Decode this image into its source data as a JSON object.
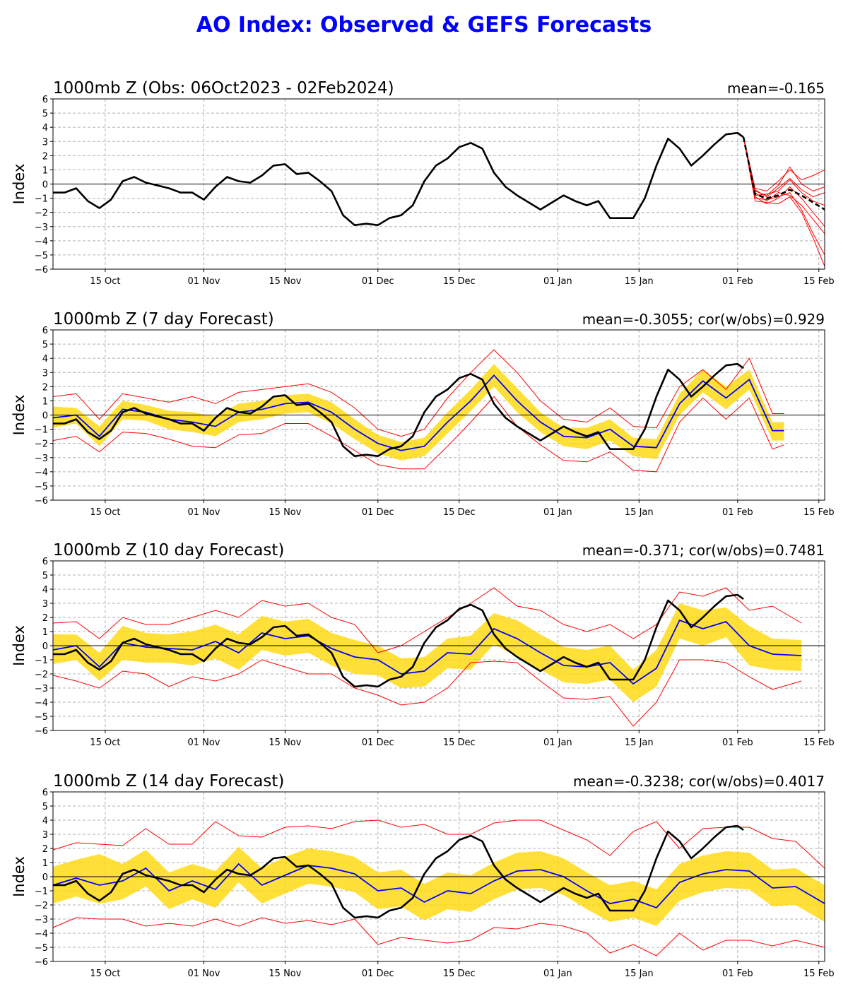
{
  "page": {
    "title": "AO Index: Observed & GEFS Forecasts"
  },
  "colors": {
    "title": "#0000ff",
    "obs": "#000000",
    "mean": "#0000ff",
    "spread": "#ffd700",
    "extremes": "#ff0000",
    "members": "#ff0000",
    "grid": "#b0b0b0"
  },
  "chart_data": [
    {
      "type": "line",
      "title": "1000mb Z (Obs: 06Oct2023 - 02Feb2024)",
      "stat": "mean=-0.165",
      "ylabel": "Index",
      "ylim": [
        -6,
        6
      ],
      "yticks": [
        -6,
        -5,
        -4,
        -3,
        -2,
        -1,
        0,
        1,
        2,
        3,
        4,
        5,
        6
      ],
      "xlim": [
        "2023-10-06",
        "2024-02-16"
      ],
      "xticks": [
        {
          "date": "2023-10-15",
          "label": "15 Oct"
        },
        {
          "date": "2023-11-01",
          "label": "01 Nov"
        },
        {
          "date": "2023-11-15",
          "label": "15 Nov"
        },
        {
          "date": "2023-12-01",
          "label": "01 Dec"
        },
        {
          "date": "2023-12-15",
          "label": "15 Dec"
        },
        {
          "date": "2024-01-01",
          "label": "01 Jan"
        },
        {
          "date": "2024-01-15",
          "label": "15 Jan"
        },
        {
          "date": "2024-02-01",
          "label": "01 Feb"
        },
        {
          "date": "2024-02-15",
          "label": "15 Feb"
        }
      ],
      "grid": true,
      "observed_key": "observed_ao",
      "ensemble": {
        "description": "GEFS member forecasts from 02Feb2024",
        "x": [
          "2024-02-02",
          "2024-02-04",
          "2024-02-06",
          "2024-02-08",
          "2024-02-10",
          "2024-02-12",
          "2024-02-14",
          "2024-02-16"
        ],
        "mean": [
          3.3,
          -0.7,
          -1.0,
          -0.8,
          -0.4,
          -0.8,
          -1.3,
          -1.8
        ],
        "members": [
          [
            3.3,
            -0.3,
            -0.5,
            0.2,
            1.0,
            0.3,
            0.6,
            1.0
          ],
          [
            3.3,
            -0.5,
            -0.8,
            -0.1,
            1.2,
            0.0,
            -0.5,
            -0.2
          ],
          [
            3.3,
            -0.9,
            -1.4,
            -1.0,
            -0.2,
            -1.0,
            -2.0,
            -3.0
          ],
          [
            3.3,
            -0.6,
            -1.2,
            -0.6,
            -0.8,
            -1.5,
            -2.5,
            -3.5
          ],
          [
            3.3,
            -1.0,
            -1.1,
            -0.9,
            -0.6,
            -1.8,
            -3.5,
            -5.0
          ],
          [
            3.3,
            -0.8,
            -0.7,
            -0.5,
            0.3,
            -0.6,
            -1.2,
            -1.5
          ],
          [
            3.3,
            -1.2,
            -1.3,
            -1.4,
            -0.9,
            -2.0,
            -3.8,
            -5.8
          ],
          [
            3.3,
            -0.4,
            -0.9,
            -0.3,
            0.4,
            -0.4,
            -0.9,
            -0.6
          ]
        ]
      }
    },
    {
      "type": "line",
      "title": "1000mb Z (7 day Forecast)",
      "stat": "mean=-0.3055; cor(w/obs)=0.929",
      "ylabel": "Index",
      "ylim": [
        -6,
        6
      ],
      "yticks": [
        -6,
        -5,
        -4,
        -3,
        -2,
        -1,
        0,
        1,
        2,
        3,
        4,
        5,
        6
      ],
      "xlim": [
        "2023-10-06",
        "2024-02-16"
      ],
      "grid": true,
      "observed_key": "observed_ao",
      "forecast": {
        "x": [
          "2023-10-06",
          "2023-10-10",
          "2023-10-14",
          "2023-10-18",
          "2023-10-22",
          "2023-10-26",
          "2023-10-30",
          "2023-11-03",
          "2023-11-07",
          "2023-11-11",
          "2023-11-15",
          "2023-11-19",
          "2023-11-23",
          "2023-11-27",
          "2023-12-01",
          "2023-12-05",
          "2023-12-09",
          "2023-12-13",
          "2023-12-17",
          "2023-12-21",
          "2023-12-25",
          "2023-12-29",
          "2024-01-02",
          "2024-01-06",
          "2024-01-10",
          "2024-01-14",
          "2024-01-18",
          "2024-01-22",
          "2024-01-26",
          "2024-01-30",
          "2024-02-03",
          "2024-02-07",
          "2024-02-09"
        ],
        "mean": [
          -0.2,
          0.0,
          -1.5,
          0.4,
          0.2,
          -0.3,
          -0.5,
          -0.8,
          0.2,
          0.4,
          0.8,
          0.9,
          0.2,
          -1.0,
          -2.0,
          -2.5,
          -2.2,
          -0.5,
          1.0,
          2.8,
          1.0,
          -0.5,
          -1.5,
          -1.6,
          -1.0,
          -2.2,
          -2.3,
          0.8,
          2.4,
          1.2,
          2.5,
          -1.1,
          -1.1
        ],
        "band_upper": [
          0.6,
          0.5,
          -0.8,
          1.0,
          0.7,
          0.3,
          0.2,
          -0.1,
          0.8,
          1.0,
          1.4,
          1.5,
          0.9,
          -0.3,
          -1.4,
          -1.9,
          -1.6,
          0.2,
          1.8,
          3.6,
          1.9,
          0.2,
          -0.9,
          -0.9,
          -0.3,
          -1.6,
          -1.7,
          1.5,
          3.2,
          2.0,
          3.2,
          -0.5,
          -0.5
        ],
        "band_lower": [
          -0.9,
          -0.6,
          -2.2,
          -0.3,
          -0.4,
          -1.0,
          -1.2,
          -1.5,
          -0.5,
          -0.3,
          0.1,
          0.2,
          -0.6,
          -1.7,
          -2.7,
          -3.2,
          -2.9,
          -1.3,
          0.3,
          2.0,
          0.2,
          -1.2,
          -2.2,
          -2.4,
          -1.8,
          -2.9,
          -3.1,
          0.0,
          1.6,
          0.4,
          1.8,
          -1.8,
          -1.8
        ],
        "max": [
          1.3,
          1.5,
          -0.3,
          1.5,
          1.2,
          0.9,
          1.3,
          0.8,
          1.6,
          1.8,
          2.0,
          2.2,
          1.6,
          0.5,
          -1.0,
          -1.5,
          -1.0,
          1.2,
          3.0,
          4.6,
          3.0,
          1.0,
          -0.3,
          -0.5,
          0.5,
          -0.8,
          -0.9,
          2.0,
          3.2,
          1.8,
          4.0,
          0.1,
          0.1
        ],
        "min": [
          -1.8,
          -1.5,
          -2.6,
          -1.2,
          -1.3,
          -1.7,
          -2.2,
          -2.3,
          -1.4,
          -1.3,
          -0.6,
          -0.6,
          -1.5,
          -2.5,
          -3.5,
          -3.8,
          -3.8,
          -2.2,
          -0.5,
          1.3,
          -0.8,
          -2.1,
          -3.2,
          -3.3,
          -2.6,
          -3.9,
          -4.0,
          -0.5,
          1.2,
          -0.3,
          1.2,
          -2.4,
          -2.1
        ]
      }
    },
    {
      "type": "line",
      "title": "1000mb Z (10 day Forecast)",
      "stat": "mean=-0.371; cor(w/obs)=0.7481",
      "ylabel": "Index",
      "ylim": [
        -6,
        6
      ],
      "yticks": [
        -6,
        -5,
        -4,
        -3,
        -2,
        -1,
        0,
        1,
        2,
        3,
        4,
        5,
        6
      ],
      "xlim": [
        "2023-10-06",
        "2024-02-16"
      ],
      "grid": true,
      "observed_key": "observed_ao",
      "forecast": {
        "x": [
          "2023-10-06",
          "2023-10-10",
          "2023-10-14",
          "2023-10-18",
          "2023-10-22",
          "2023-10-26",
          "2023-10-30",
          "2023-11-03",
          "2023-11-07",
          "2023-11-11",
          "2023-11-15",
          "2023-11-19",
          "2023-11-23",
          "2023-11-27",
          "2023-12-01",
          "2023-12-05",
          "2023-12-09",
          "2023-12-13",
          "2023-12-17",
          "2023-12-21",
          "2023-12-25",
          "2023-12-29",
          "2024-01-02",
          "2024-01-06",
          "2024-01-10",
          "2024-01-14",
          "2024-01-18",
          "2024-01-22",
          "2024-01-26",
          "2024-01-30",
          "2024-02-03",
          "2024-02-07",
          "2024-02-12"
        ],
        "mean": [
          -0.3,
          0.0,
          -1.5,
          0.2,
          -0.1,
          -0.2,
          -0.3,
          0.3,
          -0.5,
          0.9,
          0.5,
          0.7,
          -0.2,
          -0.8,
          -1.0,
          -2.0,
          -1.8,
          -0.5,
          -0.6,
          1.2,
          0.5,
          -0.5,
          -1.4,
          -1.5,
          -1.2,
          -2.7,
          -1.6,
          1.8,
          1.2,
          1.7,
          0.0,
          -0.6,
          -0.7
        ],
        "band_upper": [
          0.8,
          0.8,
          -0.5,
          1.4,
          0.9,
          0.8,
          1.0,
          1.5,
          0.8,
          2.1,
          1.7,
          1.9,
          0.9,
          0.4,
          0.0,
          -0.9,
          -0.8,
          0.5,
          0.7,
          2.3,
          1.8,
          0.8,
          -0.1,
          -0.3,
          0.0,
          -1.7,
          -0.3,
          3.0,
          2.5,
          2.7,
          1.4,
          0.5,
          0.4
        ],
        "band_lower": [
          -1.3,
          -1.0,
          -2.5,
          -1.0,
          -1.2,
          -1.2,
          -1.4,
          -0.9,
          -1.7,
          -0.3,
          -0.7,
          -0.5,
          -1.4,
          -2.0,
          -2.1,
          -3.0,
          -2.9,
          -1.6,
          -1.7,
          0.1,
          -0.8,
          -1.7,
          -2.6,
          -2.7,
          -2.4,
          -4.0,
          -2.9,
          0.5,
          0.0,
          0.6,
          -1.4,
          -1.7,
          -1.8
        ],
        "max": [
          1.6,
          1.7,
          0.5,
          2.0,
          1.5,
          1.5,
          2.0,
          2.5,
          2.0,
          3.2,
          2.8,
          3.0,
          2.0,
          1.5,
          -0.5,
          0.0,
          1.0,
          2.0,
          3.0,
          4.1,
          2.8,
          2.5,
          1.5,
          1.0,
          1.5,
          0.5,
          1.5,
          3.8,
          3.5,
          4.1,
          2.5,
          2.8,
          1.6
        ],
        "min": [
          -2.1,
          -2.5,
          -3.0,
          -1.8,
          -2.0,
          -2.9,
          -2.2,
          -2.5,
          -2.0,
          -1.0,
          -1.5,
          -2.0,
          -2.0,
          -3.0,
          -3.5,
          -4.2,
          -4.0,
          -3.0,
          -1.2,
          -1.1,
          -1.2,
          -2.5,
          -3.7,
          -3.8,
          -3.6,
          -5.7,
          -4.0,
          -1.0,
          -1.0,
          -1.2,
          -2.2,
          -3.1,
          -2.5
        ]
      }
    },
    {
      "type": "line",
      "title": "1000mb Z (14 day Forecast)",
      "stat": "mean=-0.3238; cor(w/obs)=0.4017",
      "ylabel": "Index",
      "ylim": [
        -6,
        6
      ],
      "yticks": [
        -6,
        -5,
        -4,
        -3,
        -2,
        -1,
        0,
        1,
        2,
        3,
        4,
        5,
        6
      ],
      "xlim": [
        "2023-10-06",
        "2024-02-16"
      ],
      "grid": true,
      "observed_key": "observed_ao",
      "forecast": {
        "x": [
          "2023-10-06",
          "2023-10-10",
          "2023-10-14",
          "2023-10-18",
          "2023-10-22",
          "2023-10-26",
          "2023-10-30",
          "2023-11-03",
          "2023-11-07",
          "2023-11-11",
          "2023-11-15",
          "2023-11-19",
          "2023-11-23",
          "2023-11-27",
          "2023-12-01",
          "2023-12-05",
          "2023-12-09",
          "2023-12-13",
          "2023-12-17",
          "2023-12-21",
          "2023-12-25",
          "2023-12-29",
          "2024-01-02",
          "2024-01-06",
          "2024-01-10",
          "2024-01-14",
          "2024-01-18",
          "2024-01-22",
          "2024-01-26",
          "2024-01-30",
          "2024-02-03",
          "2024-02-07",
          "2024-02-11",
          "2024-02-16"
        ],
        "mean": [
          -0.6,
          -0.1,
          -0.6,
          -0.3,
          0.6,
          -1.0,
          -0.3,
          -0.9,
          0.9,
          -0.6,
          0.1,
          0.8,
          0.6,
          0.2,
          -1.0,
          -0.8,
          -1.8,
          -1.0,
          -1.2,
          -0.3,
          0.4,
          0.5,
          0.0,
          -1.0,
          -1.9,
          -1.6,
          -2.2,
          -0.4,
          0.2,
          0.5,
          0.4,
          -0.8,
          -0.7,
          -1.9
        ],
        "band_upper": [
          0.7,
          1.2,
          1.6,
          0.9,
          1.9,
          0.3,
          0.9,
          0.4,
          2.1,
          0.6,
          1.4,
          2.0,
          1.8,
          1.4,
          0.3,
          0.5,
          -0.5,
          0.3,
          0.1,
          1.0,
          1.7,
          1.8,
          1.3,
          0.3,
          -0.6,
          -0.3,
          -0.9,
          0.9,
          1.5,
          1.8,
          1.7,
          0.5,
          0.6,
          -0.6
        ],
        "band_lower": [
          -1.9,
          -1.4,
          -1.9,
          -1.6,
          -0.7,
          -2.3,
          -1.6,
          -2.2,
          -0.4,
          -1.9,
          -1.2,
          -0.5,
          -0.7,
          -1.1,
          -2.3,
          -2.1,
          -3.1,
          -2.3,
          -2.5,
          -1.6,
          -0.9,
          -0.8,
          -1.3,
          -2.3,
          -3.2,
          -2.9,
          -3.5,
          -1.7,
          -1.1,
          -0.8,
          -0.9,
          -2.1,
          -2.0,
          -3.2
        ],
        "max": [
          1.9,
          2.4,
          2.3,
          2.2,
          3.4,
          2.3,
          2.3,
          3.9,
          2.9,
          2.8,
          3.5,
          3.6,
          3.4,
          3.9,
          4.0,
          3.5,
          3.7,
          3.0,
          3.0,
          3.8,
          4.0,
          4.0,
          3.3,
          2.6,
          1.5,
          3.2,
          3.9,
          2.0,
          3.4,
          3.5,
          3.5,
          2.7,
          2.5,
          0.6
        ],
        "min": [
          -3.6,
          -2.9,
          -3.0,
          -3.0,
          -3.5,
          -3.3,
          -3.5,
          -3.0,
          -3.5,
          -2.9,
          -3.3,
          -3.1,
          -3.4,
          -3.0,
          -4.8,
          -4.3,
          -4.5,
          -4.7,
          -4.5,
          -3.6,
          -3.7,
          -3.3,
          -3.5,
          -4.0,
          -5.4,
          -4.8,
          -5.6,
          -4.0,
          -5.2,
          -4.5,
          -4.5,
          -4.9,
          -4.5,
          -5.0
        ]
      }
    }
  ],
  "observed_ao": {
    "x": [
      "2023-10-06",
      "2023-10-08",
      "2023-10-10",
      "2023-10-12",
      "2023-10-14",
      "2023-10-16",
      "2023-10-18",
      "2023-10-20",
      "2023-10-22",
      "2023-10-24",
      "2023-10-26",
      "2023-10-28",
      "2023-10-30",
      "2023-11-01",
      "2023-11-03",
      "2023-11-05",
      "2023-11-07",
      "2023-11-09",
      "2023-11-11",
      "2023-11-13",
      "2023-11-15",
      "2023-11-17",
      "2023-11-19",
      "2023-11-21",
      "2023-11-23",
      "2023-11-25",
      "2023-11-27",
      "2023-11-29",
      "2023-12-01",
      "2023-12-03",
      "2023-12-05",
      "2023-12-07",
      "2023-12-09",
      "2023-12-11",
      "2023-12-13",
      "2023-12-15",
      "2023-12-17",
      "2023-12-19",
      "2023-12-21",
      "2023-12-23",
      "2023-12-25",
      "2023-12-27",
      "2023-12-29",
      "2023-12-31",
      "2024-01-02",
      "2024-01-04",
      "2024-01-06",
      "2024-01-08",
      "2024-01-10",
      "2024-01-12",
      "2024-01-14",
      "2024-01-16",
      "2024-01-18",
      "2024-01-20",
      "2024-01-22",
      "2024-01-24",
      "2024-01-26",
      "2024-01-28",
      "2024-01-30",
      "2024-02-01",
      "2024-02-02"
    ],
    "values": [
      -0.6,
      -0.6,
      -0.3,
      -1.2,
      -1.7,
      -1.1,
      0.2,
      0.5,
      0.1,
      -0.1,
      -0.3,
      -0.6,
      -0.6,
      -1.1,
      -0.2,
      0.5,
      0.2,
      0.1,
      0.6,
      1.3,
      1.4,
      0.7,
      0.8,
      0.2,
      -0.5,
      -2.2,
      -2.9,
      -2.8,
      -2.9,
      -2.4,
      -2.2,
      -1.5,
      0.2,
      1.3,
      1.8,
      2.6,
      2.9,
      2.5,
      0.8,
      -0.2,
      -0.8,
      -1.3,
      -1.8,
      -1.3,
      -0.8,
      -1.2,
      -1.5,
      -1.2,
      -2.4,
      -2.4,
      -2.4,
      -1.0,
      1.3,
      3.2,
      2.5,
      1.3,
      2.0,
      2.8,
      3.5,
      3.6,
      3.3
    ]
  }
}
